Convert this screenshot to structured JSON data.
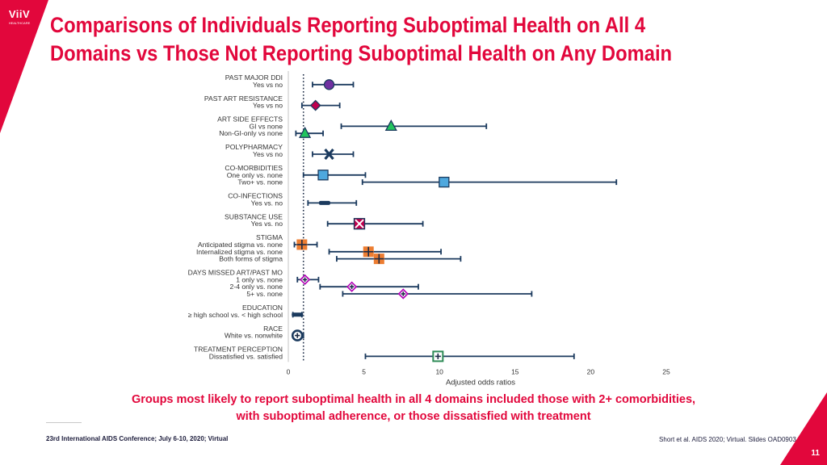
{
  "logo": {
    "text": "ViiV",
    "subtext": "HEALTHCARE"
  },
  "title": {
    "line1": "Comparisons of Individuals Reporting Suboptimal Health on All 4",
    "line2": "Domains vs Those Not Reporting Suboptimal Health on Any Domain"
  },
  "conclusion": {
    "line1": "Groups most likely to report suboptimal health in all 4 domains included those with 2+ comorbidities,",
    "line2": "with suboptimal adherence, or those dissatisfied with treatment"
  },
  "footer": {
    "left": "23rd International AIDS Conference; July 6-10, 2020; Virtual",
    "right": "Short et al. AIDS 2020; Virtual. Slides OAD0903.",
    "page": "11"
  },
  "colors": {
    "brand": "#e2073c",
    "navy": "#1b3a5e",
    "purple": "#7030a0",
    "crimson": "#c0004e",
    "green": "#22c55e",
    "blue": "#4ea8de",
    "orange": "#ed7d31",
    "magenta": "#b000b5",
    "darkgreen": "#2e8b57"
  },
  "chart_data": {
    "type": "forest",
    "xlabel": "Adjusted odds ratios",
    "xlim": [
      0,
      25
    ],
    "xticks": [
      0,
      5,
      10,
      15,
      20,
      25
    ],
    "reference_line": 1,
    "groups": [
      {
        "label": "PAST MAJOR DDI",
        "rows": [
          {
            "label": "Yes vs no",
            "or": 2.7,
            "lo": 1.6,
            "hi": 4.3,
            "marker": "circle",
            "color": "purple"
          }
        ]
      },
      {
        "label": "PAST ART RESISTANCE",
        "rows": [
          {
            "label": "Yes vs no",
            "or": 1.8,
            "lo": 0.9,
            "hi": 3.4,
            "marker": "diamond",
            "color": "crimson"
          }
        ]
      },
      {
        "label": "ART SIDE EFFECTS",
        "rows": [
          {
            "label": "GI vs none",
            "or": 6.8,
            "lo": 3.5,
            "hi": 13.1,
            "marker": "triangle",
            "color": "green"
          },
          {
            "label": "Non-GI-only vs none",
            "or": 1.1,
            "lo": 0.5,
            "hi": 2.3,
            "marker": "triangle",
            "color": "green"
          }
        ]
      },
      {
        "label": "POLYPHARMACY",
        "rows": [
          {
            "label": "Yes vs no",
            "or": 2.7,
            "lo": 1.6,
            "hi": 4.3,
            "marker": "x",
            "color": "navy"
          }
        ]
      },
      {
        "label": "CO-MORBIDITIES",
        "rows": [
          {
            "label": "One only vs. none",
            "or": 2.3,
            "lo": 1.0,
            "hi": 5.1,
            "marker": "square",
            "color": "blue"
          },
          {
            "label": "Two+ vs. none",
            "or": 10.3,
            "lo": 4.9,
            "hi": 21.7,
            "marker": "square",
            "color": "blue"
          }
        ]
      },
      {
        "label": "CO-INFECTIONS",
        "rows": [
          {
            "label": "Yes vs. no",
            "or": 2.4,
            "lo": 1.3,
            "hi": 4.5,
            "marker": "dash",
            "color": "navy"
          }
        ]
      },
      {
        "label": "SUBSTANCE USE",
        "rows": [
          {
            "label": "Yes vs. no",
            "or": 4.7,
            "lo": 2.6,
            "hi": 8.9,
            "marker": "xsquare",
            "color": "crimson"
          }
        ]
      },
      {
        "label": "STIGMA",
        "rows": [
          {
            "label": "Anticipated stigma vs. none",
            "or": 0.9,
            "lo": 0.4,
            "hi": 1.9,
            "marker": "plussquare",
            "color": "orange"
          },
          {
            "label": "Internalized stigma vs. none",
            "or": 5.3,
            "lo": 2.7,
            "hi": 10.1,
            "marker": "plussquare",
            "color": "orange"
          },
          {
            "label": "Both forms of stigma",
            "or": 6.0,
            "lo": 3.2,
            "hi": 11.4,
            "marker": "plussquare",
            "color": "orange"
          }
        ]
      },
      {
        "label": "DAYS MISSED ART/PAST MO",
        "rows": [
          {
            "label": "1 only vs. none",
            "or": 1.1,
            "lo": 0.6,
            "hi": 2.0,
            "marker": "diamondplus",
            "color": "magenta"
          },
          {
            "label": "2-4 only vs. none",
            "or": 4.2,
            "lo": 2.1,
            "hi": 8.6,
            "marker": "diamondplus",
            "color": "magenta"
          },
          {
            "label": "5+ vs. none",
            "or": 7.6,
            "lo": 3.6,
            "hi": 16.1,
            "marker": "diamondplus",
            "color": "magenta"
          }
        ]
      },
      {
        "label": "EDUCATION",
        "rows": [
          {
            "label": "≥ high school vs. < high school",
            "or": 0.6,
            "lo": 0.3,
            "hi": 0.9,
            "marker": "dash",
            "color": "navy"
          }
        ]
      },
      {
        "label": "RACE",
        "rows": [
          {
            "label": "White vs. nonwhite",
            "or": 0.6,
            "lo": 0.3,
            "hi": 1.0,
            "marker": "circleplus",
            "color": "blue"
          }
        ]
      },
      {
        "label": "TREATMENT PERCEPTION",
        "rows": [
          {
            "label": "Dissatisfied vs. satisfied",
            "or": 9.9,
            "lo": 5.1,
            "hi": 18.9,
            "marker": "squareplus",
            "color": "darkgreen"
          }
        ]
      }
    ]
  }
}
